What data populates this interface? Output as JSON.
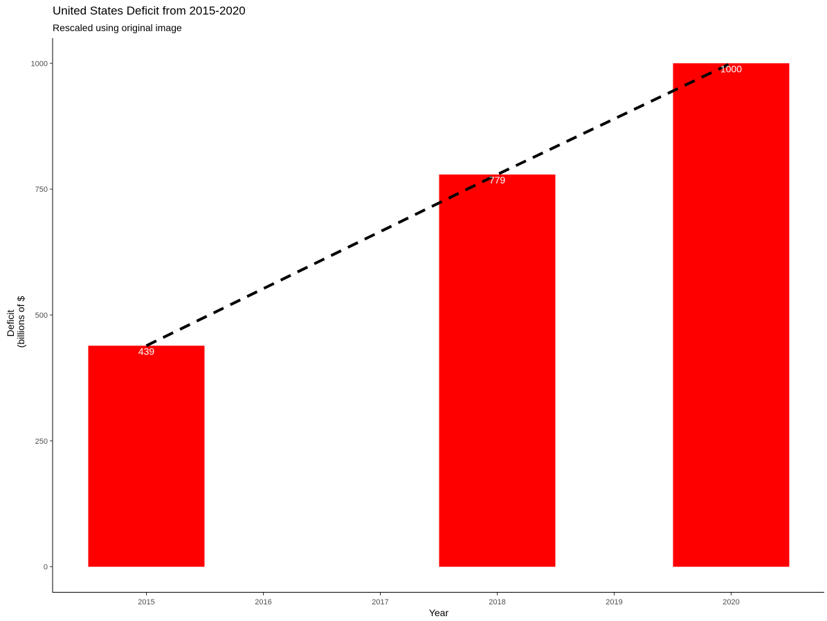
{
  "chart_data": {
    "type": "bar",
    "title": "United States Deficit from 2015-2020",
    "subtitle": "Rescaled using original image",
    "xlabel": "Year",
    "ylabel_lines": [
      "Deficit",
      "(billions of $"
    ],
    "x_ticks": [
      "2015",
      "2016",
      "2017",
      "2018",
      "2019",
      "2020"
    ],
    "categories": [
      "2015",
      "2018",
      "2020"
    ],
    "values": [
      439,
      779,
      1000
    ],
    "value_labels": [
      "439",
      "779",
      "1000"
    ],
    "y_ticks": [
      0,
      250,
      500,
      750,
      1000
    ],
    "ylim": [
      -50,
      1050
    ],
    "bar_color": "#ff0000",
    "trend_line": {
      "style": "dashed",
      "color": "#000000",
      "points": [
        [
          2015,
          439
        ],
        [
          2018,
          779
        ],
        [
          2020,
          1000
        ]
      ]
    },
    "grid": false
  }
}
